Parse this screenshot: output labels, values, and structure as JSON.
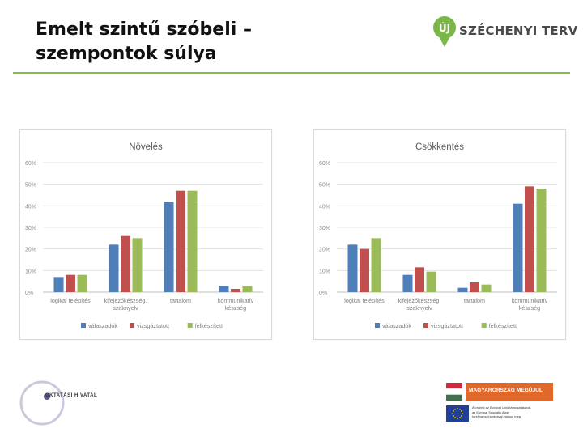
{
  "slide": {
    "title": "Emelt szintű szóbeli –\nszempontok súlya"
  },
  "logo": {
    "badge": "ÚJ",
    "name": "SZÉCHENYI TERV"
  },
  "footer": {
    "left_org": "OKTATÁSI HIVATAL",
    "right_banner": "MAGYARORSZÁG MEGÚJUL",
    "right_note": "A projekt az Európai Unió támogatásával,\naz Európai Szociális Alap\ntársfinanszírozásával valósul meg."
  },
  "colors": {
    "accent_green": "#8cbf3f",
    "series_blue": "#4e7fb8",
    "series_red": "#c0504d",
    "series_green": "#9bbb59"
  },
  "chart_data": [
    {
      "type": "bar",
      "title": "Növelés",
      "categories": [
        [
          "logikai felépítés"
        ],
        [
          "kifejezőkészség,",
          "szaknyelv"
        ],
        [
          "tartalom"
        ],
        [
          "kommunikatív",
          "készség"
        ]
      ],
      "ylim": [
        0,
        60
      ],
      "yticks": [
        "0%",
        "10%",
        "20%",
        "30%",
        "40%",
        "50%",
        "60%"
      ],
      "grid": true,
      "legend_position": "bottom",
      "series": [
        {
          "name": "válaszadók",
          "values": [
            7,
            22,
            42,
            3
          ]
        },
        {
          "name": "vizsgáztatott",
          "values": [
            8,
            26,
            47,
            1.5
          ]
        },
        {
          "name": "felkészített",
          "values": [
            8,
            25,
            47,
            3
          ]
        }
      ]
    },
    {
      "type": "bar",
      "title": "Csökkentés",
      "categories": [
        [
          "logikai felépítés"
        ],
        [
          "kifejezőkészség,",
          "szaknyelv"
        ],
        [
          "tartalom"
        ],
        [
          "kommunikatív",
          "készség"
        ]
      ],
      "ylim": [
        0,
        60
      ],
      "yticks": [
        "0%",
        "10%",
        "20%",
        "30%",
        "40%",
        "50%",
        "60%"
      ],
      "grid": true,
      "legend_position": "bottom",
      "series": [
        {
          "name": "válaszadók",
          "values": [
            22,
            8,
            2,
            41
          ]
        },
        {
          "name": "vizsgáztatott",
          "values": [
            20,
            11.5,
            4.5,
            49
          ]
        },
        {
          "name": "felkészített",
          "values": [
            25,
            9.5,
            3.5,
            48
          ]
        }
      ]
    }
  ]
}
